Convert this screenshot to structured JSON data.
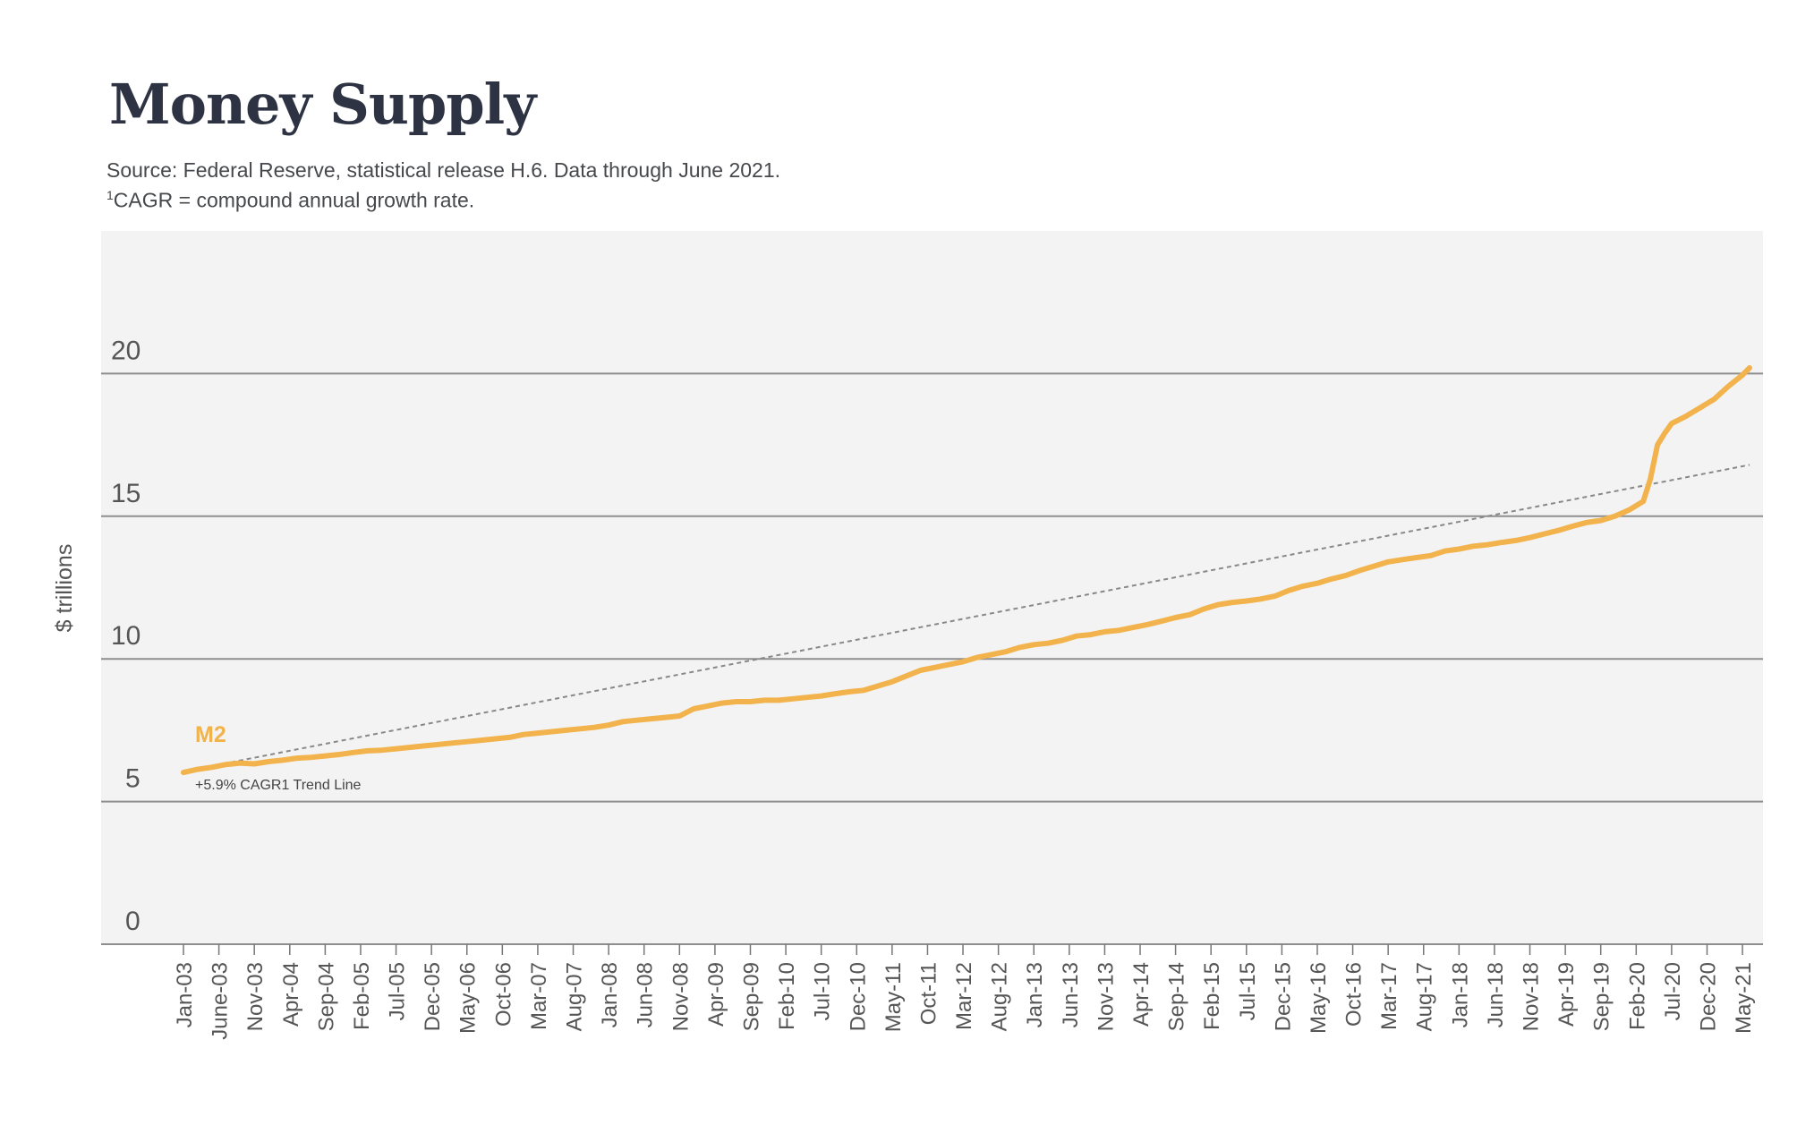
{
  "header": {
    "title": "Money Supply",
    "source_note": "Source: Federal Reserve, statistical release H.6. Data through June 2021.",
    "footnote_mark": "1",
    "footnote_text": "CAGR = compound annual growth rate."
  },
  "colors": {
    "m2_line": "#f2b24c",
    "trend_line": "#888888",
    "plot_bg": "#f3f3f4",
    "gridline": "#8e8e8e",
    "text": "#46484c"
  },
  "chart_data": {
    "type": "line",
    "ylabel": "$ trillions",
    "ylim": [
      0,
      25
    ],
    "yticks": [
      0,
      5,
      10,
      15,
      20
    ],
    "grid": true,
    "x_tick_labels": [
      "Jan-03",
      "June-03",
      "Nov-03",
      "Apr-04",
      "Sep-04",
      "Feb-05",
      "Jul-05",
      "Dec-05",
      "May-06",
      "Oct-06",
      "Mar-07",
      "Aug-07",
      "Jan-08",
      "Jun-08",
      "Nov-08",
      "Apr-09",
      "Sep-09",
      "Feb-10",
      "Jul-10",
      "Dec-10",
      "May-11",
      "Oct-11",
      "Mar-12",
      "Aug-12",
      "Jan-13",
      "Jun-13",
      "Nov-13",
      "Apr-14",
      "Sep-14",
      "Feb-15",
      "Jul-15",
      "Dec-15",
      "May-16",
      "Oct-16",
      "Mar-17",
      "Aug-17",
      "Jan-18",
      "Jun-18",
      "Nov-18",
      "Apr-19",
      "Sep-19",
      "Feb-20",
      "Jul-20",
      "Dec-20",
      "May-21"
    ],
    "series": [
      {
        "name": "M2",
        "x": [
          "Jan-03",
          "Mar-03",
          "May-03",
          "Jul-03",
          "Sep-03",
          "Nov-03",
          "Jan-04",
          "Mar-04",
          "May-04",
          "Jul-04",
          "Sep-04",
          "Nov-04",
          "Jan-05",
          "Mar-05",
          "May-05",
          "Jul-05",
          "Sep-05",
          "Nov-05",
          "Jan-06",
          "Mar-06",
          "May-06",
          "Jul-06",
          "Sep-06",
          "Nov-06",
          "Jan-07",
          "Mar-07",
          "May-07",
          "Jul-07",
          "Sep-07",
          "Nov-07",
          "Jan-08",
          "Mar-08",
          "May-08",
          "Jul-08",
          "Sep-08",
          "Nov-08",
          "Jan-09",
          "Mar-09",
          "May-09",
          "Jul-09",
          "Sep-09",
          "Nov-09",
          "Jan-10",
          "Mar-10",
          "May-10",
          "Jul-10",
          "Sep-10",
          "Nov-10",
          "Jan-11",
          "Mar-11",
          "May-11",
          "Jul-11",
          "Sep-11",
          "Nov-11",
          "Jan-12",
          "Mar-12",
          "May-12",
          "Jul-12",
          "Sep-12",
          "Nov-12",
          "Jan-13",
          "Mar-13",
          "May-13",
          "Jul-13",
          "Sep-13",
          "Nov-13",
          "Jan-14",
          "Mar-14",
          "May-14",
          "Jul-14",
          "Sep-14",
          "Nov-14",
          "Jan-15",
          "Mar-15",
          "May-15",
          "Jul-15",
          "Sep-15",
          "Nov-15",
          "Jan-16",
          "Mar-16",
          "May-16",
          "Jul-16",
          "Sep-16",
          "Nov-16",
          "Jan-17",
          "Mar-17",
          "May-17",
          "Jul-17",
          "Sep-17",
          "Nov-17",
          "Jan-18",
          "Mar-18",
          "May-18",
          "Jul-18",
          "Sep-18",
          "Nov-18",
          "Jan-19",
          "Mar-19",
          "May-19",
          "Jul-19",
          "Sep-19",
          "Nov-19",
          "Jan-20",
          "Mar-20",
          "Apr-20",
          "May-20",
          "Jun-20",
          "Jul-20",
          "Sep-20",
          "Nov-20",
          "Jan-21",
          "Mar-21",
          "May-21",
          "Jun-21"
        ],
        "values": [
          6.02,
          6.13,
          6.2,
          6.3,
          6.35,
          6.32,
          6.4,
          6.45,
          6.52,
          6.55,
          6.6,
          6.65,
          6.72,
          6.78,
          6.8,
          6.85,
          6.9,
          6.95,
          7.0,
          7.05,
          7.1,
          7.15,
          7.2,
          7.25,
          7.35,
          7.4,
          7.45,
          7.5,
          7.55,
          7.6,
          7.68,
          7.8,
          7.85,
          7.9,
          7.95,
          8.0,
          8.25,
          8.35,
          8.45,
          8.5,
          8.5,
          8.55,
          8.55,
          8.6,
          8.65,
          8.7,
          8.78,
          8.85,
          8.9,
          9.05,
          9.2,
          9.4,
          9.6,
          9.7,
          9.8,
          9.9,
          10.05,
          10.15,
          10.25,
          10.4,
          10.5,
          10.55,
          10.65,
          10.8,
          10.85,
          10.95,
          11.0,
          11.1,
          11.2,
          11.32,
          11.45,
          11.55,
          11.75,
          11.9,
          11.98,
          12.03,
          12.1,
          12.2,
          12.4,
          12.55,
          12.65,
          12.8,
          12.92,
          13.1,
          13.25,
          13.4,
          13.48,
          13.55,
          13.62,
          13.78,
          13.85,
          13.95,
          14.0,
          14.08,
          14.15,
          14.25,
          14.38,
          14.5,
          14.65,
          14.78,
          14.85,
          15.0,
          15.22,
          15.52,
          16.3,
          17.5,
          17.9,
          18.25,
          18.5,
          18.8,
          19.1,
          19.55,
          19.95,
          20.2
        ]
      },
      {
        "name": "+5.9% CAGR1 Trend Line",
        "style": "dashed",
        "x": [
          "Jan-03",
          "Jun-21"
        ],
        "values": [
          6.05,
          16.8
        ],
        "growth": "+5.9%"
      }
    ],
    "annotations": [
      {
        "text": "M2",
        "target": "M2"
      },
      {
        "text": "+5.9% CAGR1 Trend Line",
        "target": "trend"
      }
    ]
  }
}
